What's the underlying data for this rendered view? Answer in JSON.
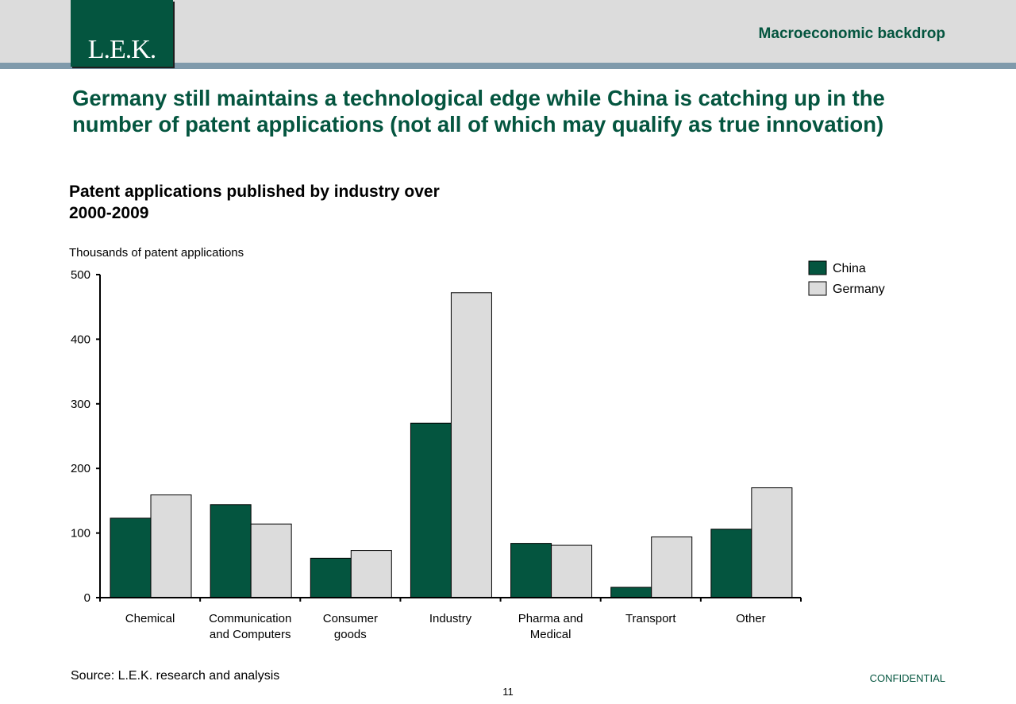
{
  "header": {
    "logo_text": "L.E.K.",
    "section_label": "Macroeconomic backdrop"
  },
  "headline": "Germany still maintains a technological edge while China is catching up in the number of patent applications (not all of which may qualify as true innovation)",
  "footer": {
    "source": "Source: L.E.K. research and analysis",
    "page_number": "11",
    "confidential": "CONFIDENTIAL"
  },
  "colors": {
    "brand_green": "#04553f",
    "series_germany": "#dcdcdc",
    "header_bar": "#dcdcdc",
    "accent_line": "#7f9aab"
  },
  "chart_data": {
    "type": "bar",
    "title": "Patent applications published by industry over 2000-2009",
    "ylabel": "Thousands of patent applications",
    "xlabel": "",
    "ylim": [
      0,
      500
    ],
    "yticks": [
      0,
      100,
      200,
      300,
      400,
      500
    ],
    "categories": [
      "Chemical",
      "Communication and Computers",
      "Consumer goods",
      "Industry",
      "Pharma and Medical",
      "Transport",
      "Other"
    ],
    "category_lines": [
      [
        "Chemical"
      ],
      [
        "Communication",
        "and Computers"
      ],
      [
        "Consumer",
        "goods"
      ],
      [
        "Industry"
      ],
      [
        "Pharma and",
        "Medical"
      ],
      [
        "Transport"
      ],
      [
        "Other"
      ]
    ],
    "series": [
      {
        "name": "China",
        "color": "#04553f",
        "values": [
          123,
          144,
          61,
          270,
          84,
          16,
          106
        ]
      },
      {
        "name": "Germany",
        "color": "#dcdcdc",
        "values": [
          159,
          114,
          73,
          472,
          81,
          94,
          170
        ]
      }
    ],
    "legend_position": "top-right",
    "grid": false
  }
}
